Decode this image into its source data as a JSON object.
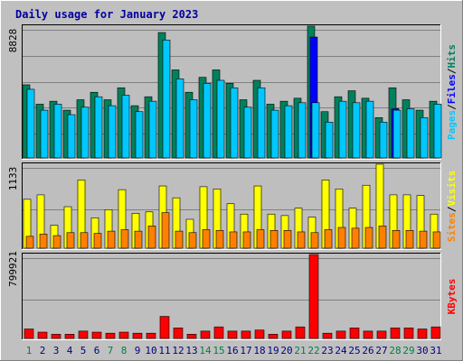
{
  "title": "Daily usage for January 2023",
  "colors": {
    "background": "#C0C0C0",
    "panel": "#BEBEBE",
    "title": "#0000A0",
    "hits": "#00805C",
    "files": "#0000FF",
    "pages": "#00C8FF",
    "visits": "#FFFF00",
    "sites": "#FF8000",
    "kbytes": "#FF0000",
    "weekday": "#000080",
    "weekend": "#008040"
  },
  "chart_data": [
    {
      "type": "bar",
      "name": "hits-files-pages",
      "ymax_label": "8828",
      "ylim": [
        0,
        8828
      ],
      "grid": true,
      "legend": "right (vertical)",
      "legend_labels": [
        "Pages",
        "/",
        "Files",
        "/",
        "Hits"
      ],
      "categories": [
        "1",
        "2",
        "3",
        "4",
        "5",
        "6",
        "7",
        "8",
        "9",
        "10",
        "11",
        "12",
        "13",
        "14",
        "15",
        "16",
        "17",
        "18",
        "19",
        "20",
        "21",
        "22",
        "23",
        "24",
        "25",
        "26",
        "27",
        "28",
        "29",
        "30",
        "31"
      ],
      "series": [
        {
          "name": "Hits",
          "values": [
            4900,
            3600,
            3800,
            3200,
            3900,
            4400,
            3900,
            4700,
            3500,
            4100,
            8400,
            5900,
            4400,
            5400,
            5900,
            5000,
            3900,
            5200,
            3600,
            3800,
            4000,
            8828,
            3100,
            4100,
            4500,
            4000,
            2700,
            4700,
            3900,
            3200,
            3800
          ]
        },
        {
          "name": "Files",
          "values": [
            0,
            0,
            0,
            0,
            0,
            0,
            0,
            0,
            0,
            0,
            0,
            0,
            0,
            0,
            0,
            0,
            0,
            0,
            0,
            0,
            0,
            8100,
            0,
            0,
            0,
            0,
            0,
            3300,
            0,
            0,
            0
          ]
        },
        {
          "name": "Pages",
          "values": [
            4600,
            3200,
            3600,
            2900,
            3400,
            4100,
            3500,
            4200,
            3100,
            3800,
            7900,
            5300,
            3900,
            5000,
            5200,
            4700,
            3400,
            4700,
            3200,
            3500,
            3700,
            3700,
            2400,
            3800,
            3700,
            3800,
            2400,
            3200,
            3300,
            2700,
            3600
          ]
        }
      ]
    },
    {
      "type": "bar",
      "name": "visits-sites",
      "ymax_label": "1133",
      "ylim": [
        0,
        1133
      ],
      "grid": true,
      "legend": "right (vertical)",
      "legend_labels": [
        "Sites",
        "/",
        "Visits"
      ],
      "categories": [
        "1",
        "2",
        "3",
        "4",
        "5",
        "6",
        "7",
        "8",
        "9",
        "10",
        "11",
        "12",
        "13",
        "14",
        "15",
        "16",
        "17",
        "18",
        "19",
        "20",
        "21",
        "22",
        "23",
        "24",
        "25",
        "26",
        "27",
        "28",
        "29",
        "30",
        "31"
      ],
      "series": [
        {
          "name": "Visits",
          "values": [
            660,
            720,
            310,
            560,
            920,
            410,
            520,
            790,
            470,
            490,
            840,
            680,
            390,
            830,
            800,
            600,
            460,
            840,
            460,
            440,
            540,
            420,
            920,
            800,
            540,
            850,
            1133,
            720,
            720,
            710,
            460
          ]
        },
        {
          "name": "Sites",
          "values": [
            160,
            190,
            170,
            210,
            210,
            200,
            230,
            250,
            230,
            300,
            480,
            230,
            210,
            250,
            240,
            220,
            220,
            250,
            240,
            240,
            220,
            210,
            250,
            280,
            270,
            280,
            300,
            240,
            240,
            230,
            220
          ]
        }
      ]
    },
    {
      "type": "bar",
      "name": "kbytes",
      "ymax_label": "799921",
      "ylim": [
        0,
        799921
      ],
      "grid": true,
      "legend": "right (vertical)",
      "legend_labels": [
        "KBytes"
      ],
      "categories": [
        "1",
        "2",
        "3",
        "4",
        "5",
        "6",
        "7",
        "8",
        "9",
        "10",
        "11",
        "12",
        "13",
        "14",
        "15",
        "16",
        "17",
        "18",
        "19",
        "20",
        "21",
        "22",
        "23",
        "24",
        "25",
        "26",
        "27",
        "28",
        "29",
        "30",
        "31"
      ],
      "series": [
        {
          "name": "KBytes",
          "values": [
            90000,
            60000,
            40000,
            40000,
            70000,
            60000,
            50000,
            60000,
            50000,
            50000,
            210000,
            100000,
            40000,
            70000,
            110000,
            70000,
            70000,
            80000,
            40000,
            70000,
            110000,
            799921,
            50000,
            70000,
            100000,
            70000,
            70000,
            100000,
            100000,
            90000,
            110000
          ]
        }
      ]
    }
  ],
  "day_types": [
    "weekend",
    "weekday",
    "weekday",
    "weekday",
    "weekday",
    "weekday",
    "weekend",
    "weekend",
    "weekday",
    "weekday",
    "weekday",
    "weekday",
    "weekday",
    "weekend",
    "weekend",
    "weekday",
    "weekday",
    "weekday",
    "weekday",
    "weekday",
    "weekend",
    "weekend",
    "weekday",
    "weekday",
    "weekday",
    "weekday",
    "weekday",
    "weekend",
    "weekend",
    "weekday",
    "weekday"
  ]
}
